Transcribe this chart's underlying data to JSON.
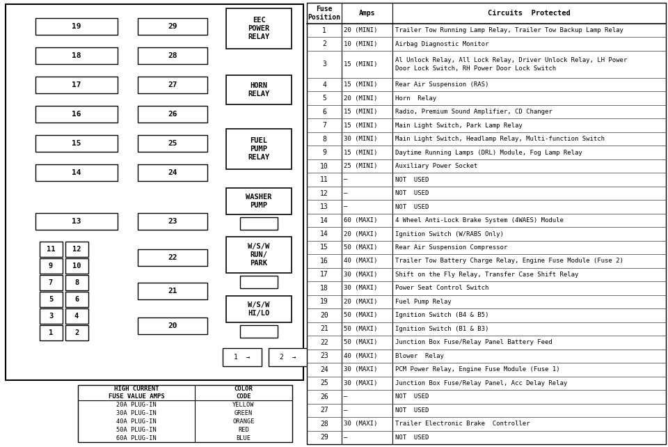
{
  "bg_color": "#ffffff",
  "color_table": {
    "rows": [
      {
        "amp": "20A PLUG-IN",
        "color": "YELLOW"
      },
      {
        "amp": "30A PLUG-IN",
        "color": "GREEN"
      },
      {
        "amp": "40A PLUG-IN",
        "color": "ORANGE"
      },
      {
        "amp": "50A PLUG-IN",
        "color": "RED"
      },
      {
        "amp": "60A PLUG-IN",
        "color": "BLUE"
      }
    ]
  },
  "table_data": {
    "rows": [
      [
        "1",
        "20 (MINI)",
        "Trailer Tow Running Lamp Relay, Trailer Tow Backup Lamp Relay"
      ],
      [
        "2",
        "10 (MINI)",
        "Airbag Diagnostic Monitor"
      ],
      [
        "3",
        "15 (MINI)",
        "Al Unlock Relay, All Lock Relay, Driver Unlock Relay, LH Power\nDoor Lock Switch, RH Power Door Lock Switch"
      ],
      [
        "4",
        "15 (MINI)",
        "Rear Air Suspension (RAS)"
      ],
      [
        "5",
        "20 (MINI)",
        "Horn  Relay"
      ],
      [
        "6",
        "15 (MINI)",
        "Radio, Premium Sound Amplifier, CD Changer"
      ],
      [
        "7",
        "15 (MINI)",
        "Main Light Switch, Park Lamp Relay"
      ],
      [
        "8",
        "30 (MINI)",
        "Main Light Switch, Headlamp Relay, Multi-function Switch"
      ],
      [
        "9",
        "15 (MINI)",
        "Daytime Running Lamps (DRL) Module, Fog Lamp Relay"
      ],
      [
        "10",
        "25 (MINI)",
        "Auxiliary Power Socket"
      ],
      [
        "11",
        "–",
        "NOT  USED"
      ],
      [
        "12",
        "–",
        "NOT  USED"
      ],
      [
        "13",
        "–",
        "NOT  USED"
      ],
      [
        "14",
        "60 (MAXI)",
        "4 Wheel Anti-Lock Brake System (4WAES) Module"
      ],
      [
        "14",
        "20 (MAXI)",
        "Ignition Switch (W/RABS Only)"
      ],
      [
        "15",
        "50 (MAXI)",
        "Rear Air Suspension Compressor"
      ],
      [
        "16",
        "40 (MAXI)",
        "Trailer Tow Battery Charge Relay, Engine Fuse Module (Fuse 2)"
      ],
      [
        "17",
        "30 (MAXI)",
        "Shift on the Fly Relay, Transfer Case Shift Relay"
      ],
      [
        "18",
        "30 (MAXI)",
        "Power Seat Control Switch"
      ],
      [
        "19",
        "20 (MAXI)",
        "Fuel Pump Relay"
      ],
      [
        "20",
        "50 (MAXI)",
        "Ignition Switch (B4 & B5)"
      ],
      [
        "21",
        "50 (MAXI)",
        "Ignition Switch (B1 & B3)"
      ],
      [
        "22",
        "50 (MAXI)",
        "Junction Box Fuse/Relay Panel Battery Feed"
      ],
      [
        "23",
        "40 (MAXI)",
        "Blower  Relay"
      ],
      [
        "24",
        "30 (MAXI)",
        "PCM Power Relay, Engine Fuse Module (Fuse 1)"
      ],
      [
        "25",
        "30 (MAXI)",
        "Junction Box Fuse/Relay Panel, Acc Delay Relay"
      ],
      [
        "26",
        "–",
        "NOT  USED"
      ],
      [
        "27",
        "–",
        "NOT  USED"
      ],
      [
        "28",
        "30 (MAXI)",
        "Trailer Electronic Brake  Controller"
      ],
      [
        "29",
        "–",
        "NOT  USED"
      ]
    ]
  }
}
